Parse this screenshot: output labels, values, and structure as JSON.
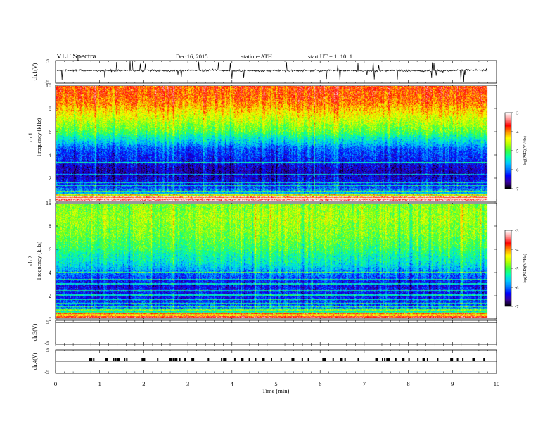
{
  "header": {
    "title": "VLF Spectra",
    "date": "Dec.16, 2015",
    "station": "station=ATH",
    "start": "start UT = 1 :10: 1"
  },
  "colors": {
    "waveform": "#000000",
    "axis": "#000000",
    "colormap": [
      "#000000",
      "#3b00a0",
      "#0000ff",
      "#0078ff",
      "#00c8ff",
      "#00ffb0",
      "#3cff3c",
      "#b4ff00",
      "#ffff00",
      "#ff9000",
      "#ff0000",
      "#ff9090",
      "#ffffff"
    ]
  },
  "chart_data": [
    {
      "type": "line",
      "panel": "ch1-waveform",
      "ylabel": "ch.1(V)",
      "ylim": [
        -5,
        5
      ],
      "yticks": [
        "5",
        "-5"
      ],
      "xlim": [
        0,
        10
      ],
      "description_values": {
        "baseline_v": 0.6,
        "noise_amplitude_v": 1.2,
        "end_time_min": 9.8
      }
    },
    {
      "type": "heatmap",
      "panel": "ch1-spectrogram",
      "ylabel": "ch.1\nFrequency (kHz)",
      "ylim": [
        0,
        10
      ],
      "yticks": [
        "0",
        "2",
        "4",
        "6",
        "8",
        "10"
      ],
      "xlim": [
        0,
        9.8
      ],
      "color_scale": {
        "label": "log(PSD)(V²/Hz)",
        "min": -7,
        "max": -3,
        "ticks": [
          "-3",
          "-4",
          "-5",
          "-6",
          "-7"
        ]
      },
      "profile_logpsd": [
        [
          0.0,
          -3.2
        ],
        [
          0.3,
          -4.0
        ],
        [
          0.6,
          -5.7
        ],
        [
          1.0,
          -6.1
        ],
        [
          1.5,
          -6.3
        ],
        [
          2.0,
          -6.5
        ],
        [
          2.5,
          -6.6
        ],
        [
          3.0,
          -6.5
        ],
        [
          3.5,
          -6.3
        ],
        [
          4.0,
          -6.2
        ],
        [
          4.5,
          -6.1
        ],
        [
          5.0,
          -5.7
        ],
        [
          5.5,
          -5.4
        ],
        [
          6.0,
          -5.0
        ],
        [
          6.5,
          -4.8
        ],
        [
          7.0,
          -4.6
        ],
        [
          7.5,
          -4.4
        ],
        [
          8.0,
          -4.2
        ],
        [
          8.5,
          -4.0
        ],
        [
          9.0,
          -3.9
        ],
        [
          10.0,
          -3.8
        ]
      ],
      "lines_khz": [
        0.2,
        0.35,
        0.5,
        0.8,
        1.0,
        1.3,
        1.55,
        2.3,
        3.3
      ]
    },
    {
      "type": "heatmap",
      "panel": "ch2-spectrogram",
      "ylabel": "ch.2\nFrequency (kHz)",
      "ylim": [
        0,
        10
      ],
      "yticks": [
        "0",
        "2",
        "4",
        "6",
        "8",
        "10"
      ],
      "xlim": [
        0,
        9.8
      ],
      "color_scale": {
        "label": "log(PSD)(V²/Hz)",
        "min": -7,
        "max": -3,
        "ticks": [
          "-3",
          "-4",
          "-5",
          "-6",
          "-7"
        ]
      },
      "profile_logpsd": [
        [
          0.0,
          -3.4
        ],
        [
          0.3,
          -4.3
        ],
        [
          0.6,
          -5.6
        ],
        [
          1.0,
          -6.0
        ],
        [
          1.5,
          -6.2
        ],
        [
          2.0,
          -6.3
        ],
        [
          2.5,
          -6.3
        ],
        [
          3.0,
          -6.4
        ],
        [
          3.5,
          -6.1
        ],
        [
          4.0,
          -5.9
        ],
        [
          4.5,
          -5.6
        ],
        [
          5.0,
          -5.4
        ],
        [
          5.5,
          -5.3
        ],
        [
          6.0,
          -5.1
        ],
        [
          6.5,
          -5.0
        ],
        [
          7.0,
          -4.9
        ],
        [
          7.5,
          -4.8
        ],
        [
          8.0,
          -4.8
        ],
        [
          8.5,
          -4.7
        ],
        [
          9.0,
          -4.7
        ],
        [
          10.0,
          -4.8
        ]
      ],
      "lines_khz": [
        0.2,
        0.4,
        0.7,
        1.0,
        1.3,
        1.6,
        2.0,
        2.4,
        3.0,
        3.4,
        4.0
      ]
    },
    {
      "type": "line",
      "panel": "ch3-waveform",
      "ylabel": "ch.3(V)",
      "ylim": [
        -5,
        5
      ],
      "yticks": [
        "5",
        "-5"
      ],
      "xlim": [
        0,
        10
      ],
      "description_values": {
        "baseline_v": 5
      }
    },
    {
      "type": "line",
      "panel": "ch4-waveform",
      "ylabel": "ch.4(V)",
      "ylim": [
        -5,
        5
      ],
      "yticks": [
        "5",
        "-5"
      ],
      "xlim": [
        0,
        10
      ],
      "description_values": {
        "baseline_v": 0
      },
      "pulses_min": [
        0.75,
        0.8,
        0.85,
        1.12,
        1.3,
        1.35,
        1.39,
        1.55,
        1.6,
        1.95,
        2.0,
        2.3,
        2.58,
        2.62,
        2.66,
        2.7,
        2.8,
        2.92,
        3.08,
        3.45,
        3.75,
        3.8,
        3.85,
        4.05,
        4.2,
        4.38,
        4.52,
        4.68,
        4.88,
        5.1,
        5.35,
        5.58,
        5.72,
        6.05,
        6.1,
        6.28,
        6.45,
        6.55,
        6.85,
        7.25,
        7.4,
        7.45,
        7.5,
        7.55,
        7.7,
        7.85,
        8.0,
        8.2,
        8.32,
        8.42,
        8.65,
        8.95,
        9.1,
        9.22,
        9.45,
        9.7
      ]
    }
  ],
  "time_axis": {
    "label": "Time (min)",
    "ticks": [
      "0",
      "1",
      "2",
      "3",
      "4",
      "5",
      "6",
      "7",
      "8",
      "9",
      "10"
    ]
  }
}
